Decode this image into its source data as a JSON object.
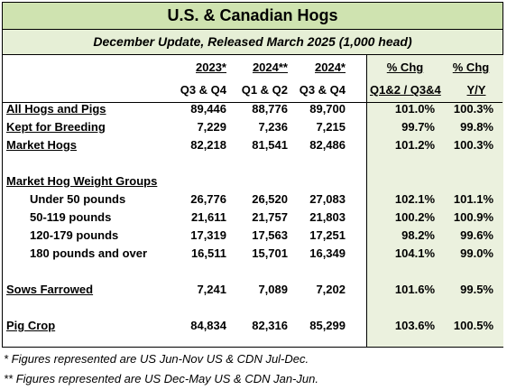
{
  "title": "U.S. & Canadian Hogs",
  "subtitle": "December Update, Released March 2025 (1,000 head)",
  "header": {
    "years": [
      "2023*",
      "2024**",
      "2024*",
      "% Chg",
      "% Chg"
    ],
    "periods": [
      "Q3 & Q4",
      "Q1 & Q2",
      "Q3 & Q4",
      "Q1&2 / Q3&4",
      "Y/Y"
    ]
  },
  "rows": [
    {
      "label": "All Hogs and Pigs",
      "values": [
        "89,446",
        "88,776",
        "89,700",
        "101.0%",
        "100.3%"
      ]
    },
    {
      "label": "Kept for Breeding",
      "values": [
        "7,229",
        "7,236",
        "7,215",
        "99.7%",
        "99.8%"
      ]
    },
    {
      "label": "Market Hogs",
      "values": [
        "82,218",
        "81,541",
        "82,486",
        "101.2%",
        "100.3%"
      ]
    },
    {
      "label": "Market Hog Weight Groups"
    },
    {
      "label": "Under 50 pounds",
      "values": [
        "26,776",
        "26,520",
        "27,083",
        "102.1%",
        "101.1%"
      ]
    },
    {
      "label": "50-119 pounds",
      "values": [
        "21,611",
        "21,757",
        "21,803",
        "100.2%",
        "100.9%"
      ]
    },
    {
      "label": "120-179 pounds",
      "values": [
        "17,319",
        "17,563",
        "17,251",
        "98.2%",
        "99.6%"
      ]
    },
    {
      "label": "180 pounds and over",
      "values": [
        "16,511",
        "15,701",
        "16,349",
        "104.1%",
        "99.0%"
      ]
    },
    {
      "label": "Sows Farrowed",
      "values": [
        "7,241",
        "7,089",
        "7,202",
        "101.6%",
        "99.5%"
      ]
    },
    {
      "label": "Pig Crop",
      "values": [
        "84,834",
        "82,316",
        "85,299",
        "103.6%",
        "100.5%"
      ]
    }
  ],
  "notes": [
    "* Figures represented are US Jun-Nov US & CDN Jul-Dec.",
    "** Figures represented are US Dec-May US & CDN Jan-Jun."
  ]
}
